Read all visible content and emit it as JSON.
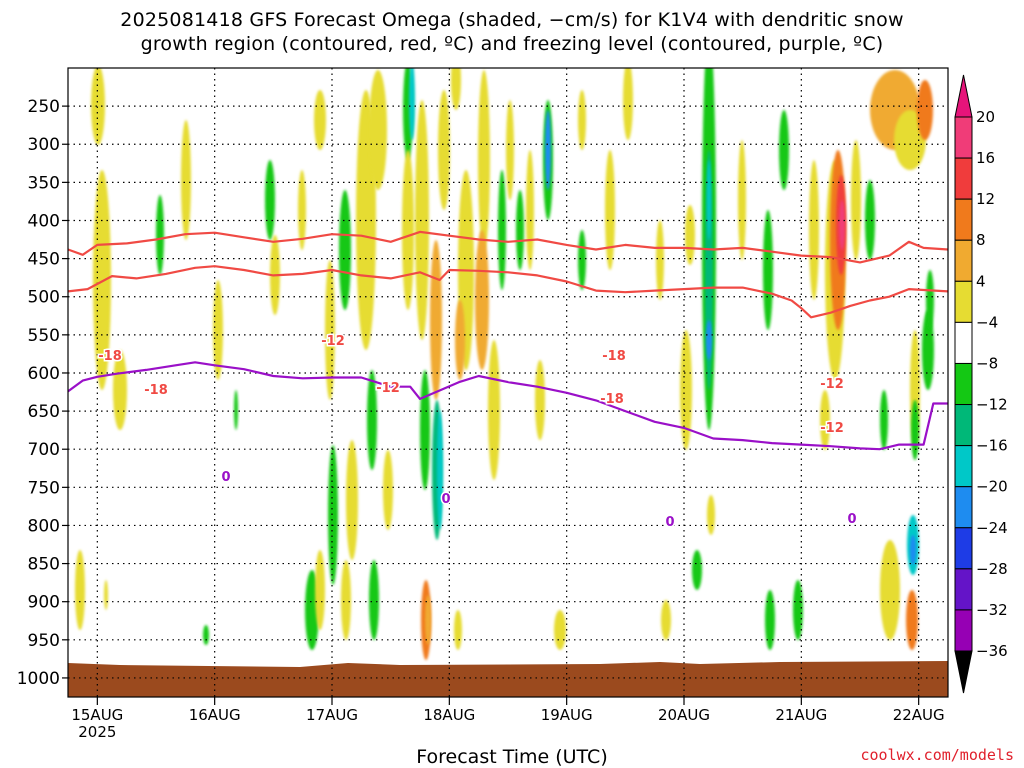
{
  "title_line1": "2025081418 GFS Forecast Omega (shaded, −cm/s) for K1V4 with dendritic snow",
  "title_line2": "growth region (contoured, red, ºC) and freezing level (contoured, purple, ºC)",
  "xlabel": "Forecast Time (UTC)",
  "credit": "coolwx.com/models",
  "colors": {
    "ground": "#9b4a1e",
    "dgz_contour": "#f04a44",
    "freezing_contour": "#9a10c8",
    "grid": "#000000"
  },
  "chart_data": {
    "type": "heatmap",
    "y_axis": {
      "unit": "hPa",
      "inverted": true,
      "range": [
        200,
        1025
      ],
      "ticks": [
        250,
        300,
        350,
        400,
        450,
        500,
        550,
        600,
        650,
        700,
        750,
        800,
        850,
        900,
        950,
        1000
      ]
    },
    "x_axis": {
      "ticks": [
        {
          "label": "15AUG",
          "sublabel": "2025",
          "hour": 6
        },
        {
          "label": "16AUG",
          "sublabel": "",
          "hour": 30
        },
        {
          "label": "17AUG",
          "sublabel": "",
          "hour": 54
        },
        {
          "label": "18AUG",
          "sublabel": "",
          "hour": 78
        },
        {
          "label": "19AUG",
          "sublabel": "",
          "hour": 102
        },
        {
          "label": "20AUG",
          "sublabel": "",
          "hour": 126
        },
        {
          "label": "21AUG",
          "sublabel": "",
          "hour": 150
        },
        {
          "label": "22AUG",
          "sublabel": "",
          "hour": 174
        }
      ],
      "range_hours": [
        0,
        180
      ]
    },
    "grid": true,
    "colorbar": {
      "levels": [
        "20",
        "16",
        "12",
        "8",
        "4",
        "−4",
        "−8",
        "−12",
        "−16",
        "−20",
        "−24",
        "−28",
        "−32",
        "−36"
      ],
      "colors": [
        "#f03c78",
        "#f03c3c",
        "#f07a1c",
        "#f0aa30",
        "#e6dc32",
        "#ffffff",
        "#14c814",
        "#00b878",
        "#00c8c8",
        "#1e8cf0",
        "#1e3ce6",
        "#6414c8",
        "#9600b4",
        "#a0a0a0"
      ],
      "top_extend_color": "#e6147a",
      "bottom_extend_color": "#000000"
    },
    "contour_labels": {
      "dgz": [
        "-18",
        "-12",
        "-18",
        "-12",
        "-18",
        "-12",
        "-18",
        "-12"
      ],
      "freezing": [
        "0",
        "0",
        "0",
        "0"
      ]
    },
    "series": [
      {
        "kind": "dgz_contour",
        "label": "-18",
        "points": [
          [
            0,
            438
          ],
          [
            3,
            445
          ],
          [
            6,
            432
          ],
          [
            12,
            430
          ],
          [
            18,
            425
          ],
          [
            24,
            418
          ],
          [
            30,
            416
          ],
          [
            36,
            422
          ],
          [
            42,
            428
          ],
          [
            48,
            424
          ],
          [
            54,
            418
          ],
          [
            60,
            420
          ],
          [
            66,
            428
          ],
          [
            72,
            415
          ],
          [
            78,
            420
          ],
          [
            84,
            425
          ],
          [
            90,
            428
          ],
          [
            96,
            425
          ],
          [
            102,
            432
          ],
          [
            108,
            438
          ],
          [
            114,
            432
          ],
          [
            120,
            436
          ],
          [
            126,
            436
          ],
          [
            132,
            438
          ],
          [
            138,
            436
          ],
          [
            144,
            441
          ],
          [
            150,
            446
          ],
          [
            156,
            448
          ],
          [
            162,
            455
          ],
          [
            168,
            446
          ],
          [
            172,
            428
          ],
          [
            175,
            436
          ],
          [
            180,
            438
          ]
        ]
      },
      {
        "kind": "dgz_contour",
        "label": "-12",
        "points": [
          [
            0,
            493
          ],
          [
            4,
            490
          ],
          [
            9,
            473
          ],
          [
            14,
            476
          ],
          [
            20,
            470
          ],
          [
            26,
            462
          ],
          [
            30,
            460
          ],
          [
            36,
            465
          ],
          [
            42,
            472
          ],
          [
            48,
            470
          ],
          [
            54,
            465
          ],
          [
            60,
            472
          ],
          [
            66,
            476
          ],
          [
            72,
            468
          ],
          [
            76,
            478
          ],
          [
            78,
            465
          ],
          [
            84,
            466
          ],
          [
            90,
            468
          ],
          [
            96,
            472
          ],
          [
            102,
            480
          ],
          [
            108,
            492
          ],
          [
            114,
            494
          ],
          [
            120,
            492
          ],
          [
            126,
            490
          ],
          [
            132,
            488
          ],
          [
            138,
            488
          ],
          [
            144,
            496
          ],
          [
            148,
            505
          ],
          [
            150,
            515
          ],
          [
            152,
            527
          ],
          [
            156,
            521
          ],
          [
            160,
            512
          ],
          [
            164,
            505
          ],
          [
            168,
            500
          ],
          [
            172,
            490
          ],
          [
            180,
            493
          ]
        ]
      },
      {
        "kind": "freezing_contour",
        "label": "0",
        "points": [
          [
            0,
            624
          ],
          [
            3,
            610
          ],
          [
            6,
            605
          ],
          [
            10,
            601
          ],
          [
            16,
            596
          ],
          [
            22,
            590
          ],
          [
            26,
            586
          ],
          [
            30,
            590
          ],
          [
            36,
            595
          ],
          [
            42,
            604
          ],
          [
            48,
            607
          ],
          [
            54,
            606
          ],
          [
            60,
            606
          ],
          [
            66,
            618
          ],
          [
            70,
            618
          ],
          [
            72,
            634
          ],
          [
            76,
            623
          ],
          [
            80,
            612
          ],
          [
            84,
            604
          ],
          [
            90,
            612
          ],
          [
            96,
            618
          ],
          [
            102,
            626
          ],
          [
            108,
            636
          ],
          [
            114,
            650
          ],
          [
            120,
            664
          ],
          [
            126,
            672
          ],
          [
            132,
            686
          ],
          [
            138,
            688
          ],
          [
            144,
            692
          ],
          [
            150,
            694
          ],
          [
            156,
            696
          ],
          [
            162,
            699
          ],
          [
            166,
            700
          ],
          [
            170,
            694
          ],
          [
            175,
            694
          ],
          [
            177,
            640
          ],
          [
            180,
            640
          ]
        ]
      }
    ]
  }
}
